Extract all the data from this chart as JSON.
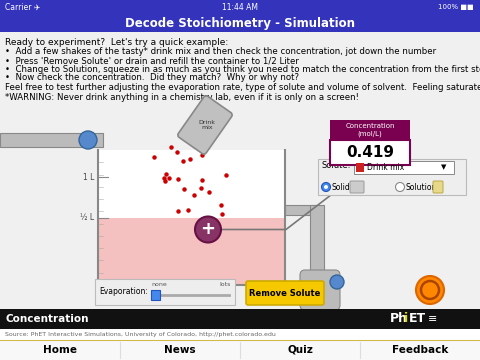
{
  "title": "Decode Stoichiometry - Simulation",
  "status_bar_text": "11:44 AM",
  "status_bar_left": "Carrier ✈",
  "status_bar_right": "100%",
  "title_bg": "#3333bb",
  "title_color": "#ffffff",
  "body_bg": "#ffffff",
  "text_lines": [
    "Ready to experiment?  Let's try a quick example:",
    "•  Add a few shakes of the tasty* drink mix and then check the concentration, jot down the number",
    "•  Press 'Remove Solute' or drain and refill the container to 1/2 Liter",
    "•  Change to Solution, squeeze in as much as you think you need to match the concentration from the first step",
    "•  Now check the concentration.  Did they match?  Why or why not?",
    "Feel free to test further adjusting the evaporation rate, type of solute and volume of solvent.  Feeling saturated yet?",
    "*WARNING: Never drink anything in a chemistry lab, even if it is only on a screen!"
  ],
  "bottom_bar_bg": "#111111",
  "bottom_bar_text": "Concentration",
  "bottom_bar_text_color": "#ffffff",
  "source_text": "Source: PhET Interactive Simulations, University of Colorado, http://phet.colorado.edu",
  "nav_items": [
    "Home",
    "News",
    "Quiz",
    "Feedback"
  ],
  "nav_bg": "#f8f8f8",
  "nav_divider": "#dddddd",
  "beaker_fill": "#f5c0c0",
  "concentration_box_bg": "#7a0050",
  "concentration_value": "0.419",
  "concentration_label": "Concentration\n(mol/L)",
  "evaporation_label": "Evaporation:",
  "remove_solute_btn": "Remove Solute",
  "remove_solute_bg": "#f5c800",
  "solute_label": "Solute:",
  "solute_value": "Drink mix",
  "solid_label": "Solid",
  "solution_label": "Solution",
  "beaker_labels": [
    "1 L",
    "½ L"
  ],
  "font_size_body": 6.5,
  "font_size_title": 8.5,
  "font_size_nav": 7.5
}
